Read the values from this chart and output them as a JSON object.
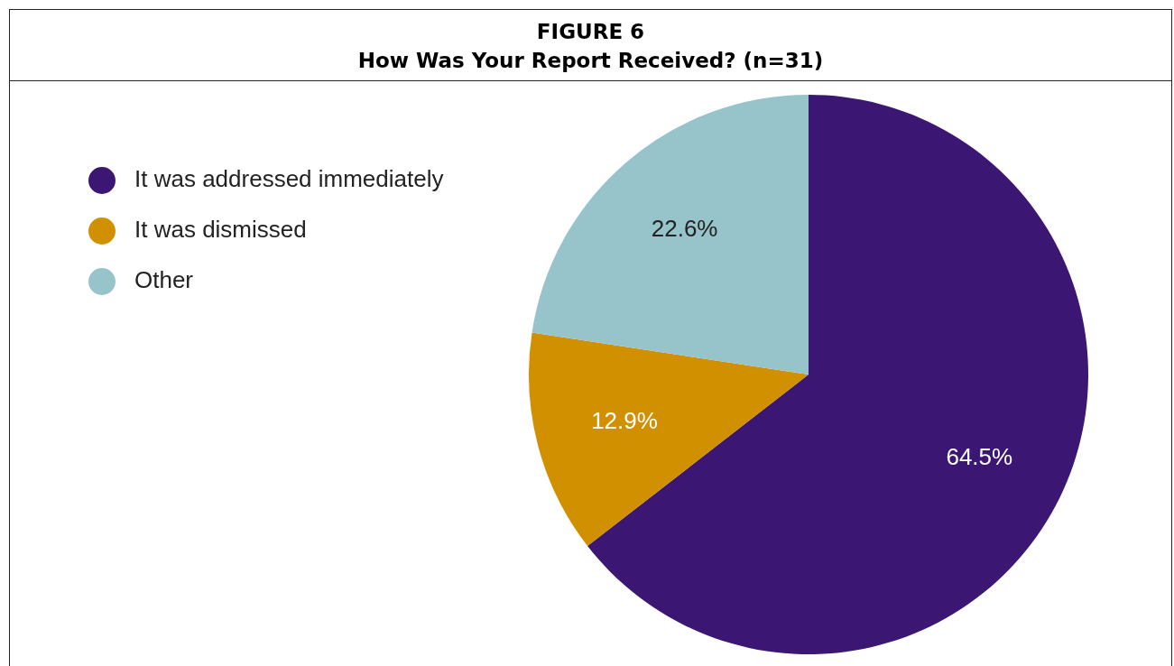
{
  "chart_data": {
    "type": "pie",
    "title": "FIGURE 6",
    "subtitle": "How Was Your Report Received? (n=31)",
    "categories": [
      "It was addressed immediately",
      "It was dismissed",
      "Other"
    ],
    "values": [
      64.5,
      12.9,
      22.6
    ],
    "colors": [
      "#3b1673",
      "#d09000",
      "#96c4ca"
    ],
    "value_labels": [
      "64.5%",
      "12.9%",
      "22.6%"
    ],
    "legend": "top left"
  }
}
